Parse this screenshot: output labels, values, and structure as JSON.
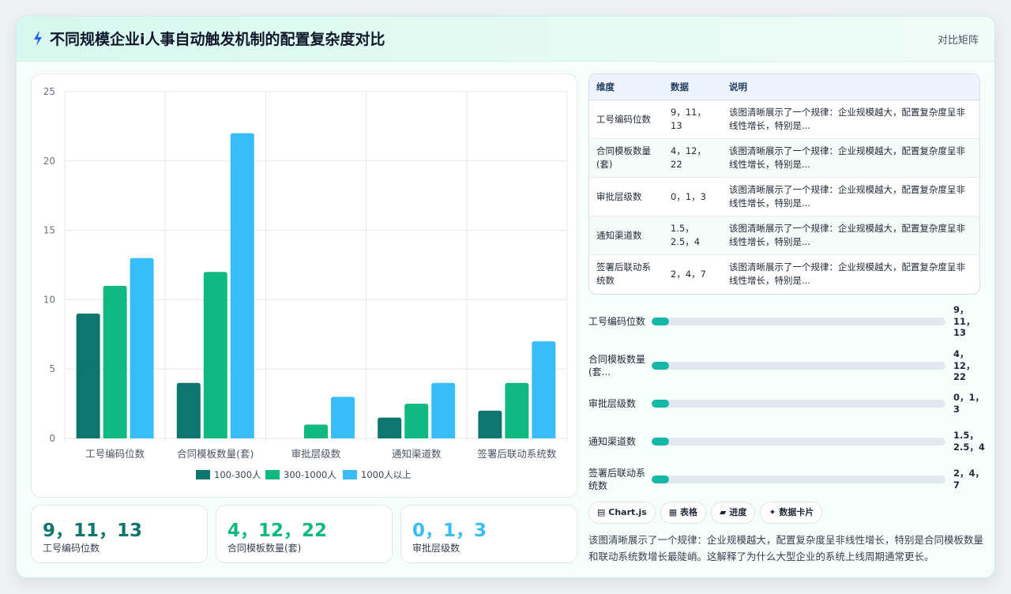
{
  "header": {
    "title": "不同规模企业i人事自动触发机制的配置复杂度对比",
    "right_label": "对比矩阵",
    "icon": "lightning-icon"
  },
  "colors": {
    "accent": "#14b8a6",
    "series": [
      "#0f766e",
      "#10b981",
      "#38bdf8"
    ]
  },
  "chart_data": {
    "type": "bar",
    "categories": [
      "工号编码位数",
      "合同模板数量(套)",
      "审批层级数",
      "通知渠道数",
      "签署后联动系统数"
    ],
    "series": [
      {
        "name": "100-300人",
        "values": [
          9,
          4,
          0,
          1.5,
          2
        ]
      },
      {
        "name": "300-1000人",
        "values": [
          11,
          12,
          1,
          2.5,
          4
        ]
      },
      {
        "name": "1000人以上",
        "values": [
          13,
          22,
          3,
          4,
          7
        ]
      }
    ],
    "ylim": [
      0,
      25
    ],
    "yticks": [
      0,
      5,
      10,
      15,
      20,
      25
    ],
    "grid": true,
    "legend": "bottom",
    "title": "",
    "xlabel": "",
    "ylabel": ""
  },
  "kpis": [
    {
      "value": "9，11，13",
      "label": "工号编码位数",
      "color": "#0f766e"
    },
    {
      "value": "4，12，22",
      "label": "合同模板数量(套)",
      "color": "#10b981"
    },
    {
      "value": "0，1，3",
      "label": "审批层级数",
      "color": "#38bdf8"
    }
  ],
  "table": {
    "headers": [
      "维度",
      "数据",
      "说明"
    ],
    "rows": [
      {
        "dim": "工号编码位数",
        "val": "9，11，13",
        "desc": "该图清晰展示了一个规律：企业规模越大，配置复杂度呈非线性增长，特别是..."
      },
      {
        "dim": "合同模板数量(套)",
        "val": "4，12，22",
        "desc": "该图清晰展示了一个规律：企业规模越大，配置复杂度呈非线性增长，特别是..."
      },
      {
        "dim": "审批层级数",
        "val": "0，1，3",
        "desc": "该图清晰展示了一个规律：企业规模越大，配置复杂度呈非线性增长，特别是..."
      },
      {
        "dim": "通知渠道数",
        "val": "1.5，2.5，4",
        "desc": "该图清晰展示了一个规律：企业规模越大，配置复杂度呈非线性增长，特别是..."
      },
      {
        "dim": "签署后联动系统数",
        "val": "2，4，7",
        "desc": "该图清晰展示了一个规律：企业规模越大，配置复杂度呈非线性增长，特别是..."
      }
    ]
  },
  "progress": [
    {
      "label": "工号编码位数",
      "value": "9，11，13",
      "fill": 0.06
    },
    {
      "label": "合同模板数量(套...",
      "value": "4，12，22",
      "fill": 0.06
    },
    {
      "label": "审批层级数",
      "value": "0，1，3",
      "fill": 0.06
    },
    {
      "label": "通知渠道数",
      "value": "1.5，2.5，4",
      "fill": 0.06
    },
    {
      "label": "签署后联动系统数",
      "value": "2，4，7",
      "fill": 0.06
    }
  ],
  "chips": [
    {
      "icon": "chart-icon",
      "label": "Chart.js"
    },
    {
      "icon": "table-icon",
      "label": "表格"
    },
    {
      "icon": "progress-icon",
      "label": "进度"
    },
    {
      "icon": "sparkle-icon",
      "label": "数据卡片"
    }
  ],
  "summary": "该图清晰展示了一个规律：企业规模越大，配置复杂度呈非线性增长，特别是合同模板数量和联动系统数增长最陡峭。这解释了为什么大型企业的系统上线周期通常更长。"
}
